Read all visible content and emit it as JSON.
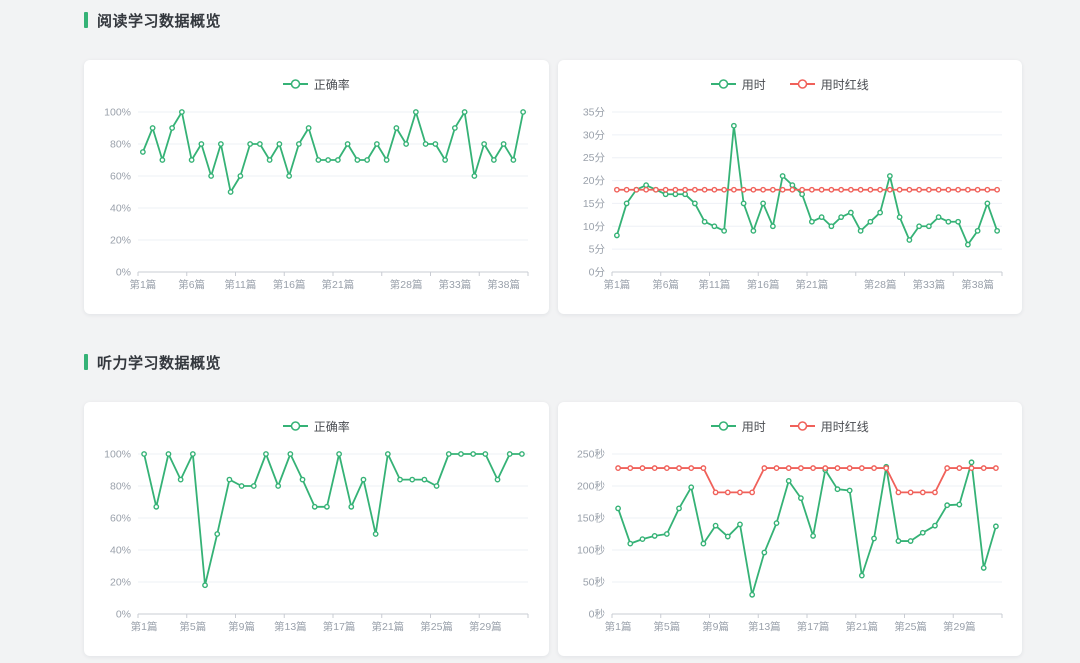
{
  "theme": {
    "green": "#35b276",
    "red": "#f0615a",
    "page_bg": "#f2f3f4",
    "card_bg": "#ffffff",
    "title_color": "#33373d",
    "axis_label_color": "#9aa1ab",
    "axis_line_color": "#c9ccd3",
    "grid_color": "#eef0f6",
    "legend_text_color": "#4a4d52"
  },
  "sections": [
    {
      "title": "阅读学习数据概览",
      "chart_ids": [
        0,
        1
      ]
    },
    {
      "title": "听力学习数据概览",
      "chart_ids": [
        2,
        3
      ]
    }
  ],
  "chart_data": [
    {
      "id": "reading-accuracy",
      "type": "line",
      "legend": [
        "正确率"
      ],
      "legend_position": "top-center",
      "grid": true,
      "ylim": [
        0,
        100
      ],
      "y_step": 20,
      "y_suffix": "%",
      "x_tick_labels": [
        "第1篇",
        "第6篇",
        "第11篇",
        "第16篇",
        "第21篇",
        "第28篇",
        "第33篇",
        "第38篇"
      ],
      "x_tick_indices": [
        0,
        5,
        10,
        15,
        20,
        27,
        32,
        37
      ],
      "series": [
        {
          "name": "正确率",
          "color": "#35b276",
          "values": [
            75,
            90,
            70,
            90,
            100,
            70,
            80,
            60,
            80,
            50,
            60,
            80,
            80,
            70,
            80,
            60,
            80,
            90,
            70,
            70,
            70,
            80,
            70,
            70,
            80,
            70,
            90,
            80,
            100,
            80,
            80,
            70,
            90,
            100,
            60,
            80,
            70,
            80,
            70,
            100
          ]
        }
      ]
    },
    {
      "id": "reading-time",
      "type": "line",
      "legend": [
        "用时",
        "用时红线"
      ],
      "legend_position": "top-center",
      "grid": true,
      "ylim": [
        0,
        35
      ],
      "y_step": 5,
      "y_suffix": "分",
      "x_tick_labels": [
        "第1篇",
        "第6篇",
        "第11篇",
        "第16篇",
        "第21篇",
        "第28篇",
        "第33篇",
        "第38篇"
      ],
      "x_tick_indices": [
        0,
        5,
        10,
        15,
        20,
        27,
        32,
        37
      ],
      "series": [
        {
          "name": "用时",
          "color": "#35b276",
          "values": [
            8,
            15,
            18,
            19,
            18,
            17,
            17,
            17,
            15,
            11,
            10,
            9,
            32,
            15,
            9,
            15,
            10,
            21,
            19,
            17,
            11,
            12,
            10,
            12,
            13,
            9,
            11,
            13,
            21,
            12,
            7,
            10,
            10,
            12,
            11,
            11,
            6,
            9,
            15,
            9
          ]
        },
        {
          "name": "用时红线",
          "color": "#f0615a",
          "values": [
            18,
            18,
            18,
            18,
            18,
            18,
            18,
            18,
            18,
            18,
            18,
            18,
            18,
            18,
            18,
            18,
            18,
            18,
            18,
            18,
            18,
            18,
            18,
            18,
            18,
            18,
            18,
            18,
            18,
            18,
            18,
            18,
            18,
            18,
            18,
            18,
            18,
            18,
            18,
            18
          ]
        }
      ]
    },
    {
      "id": "listening-accuracy",
      "type": "line",
      "legend": [
        "正确率"
      ],
      "legend_position": "top-center",
      "grid": true,
      "ylim": [
        0,
        100
      ],
      "y_step": 20,
      "y_suffix": "%",
      "x_tick_labels": [
        "第1篇",
        "第5篇",
        "第9篇",
        "第13篇",
        "第17篇",
        "第21篇",
        "第25篇",
        "第29篇"
      ],
      "x_tick_indices": [
        0,
        4,
        8,
        12,
        16,
        20,
        24,
        28
      ],
      "series": [
        {
          "name": "正确率",
          "color": "#35b276",
          "values": [
            100,
            67,
            100,
            84,
            100,
            18,
            50,
            84,
            80,
            80,
            100,
            80,
            100,
            84,
            67,
            67,
            100,
            67,
            84,
            50,
            100,
            84,
            84,
            84,
            80,
            100,
            100,
            100,
            100,
            84,
            100,
            100
          ]
        }
      ]
    },
    {
      "id": "listening-time",
      "type": "line",
      "legend": [
        "用时",
        "用时红线"
      ],
      "legend_position": "top-center",
      "grid": true,
      "ylim": [
        0,
        250
      ],
      "y_step": 50,
      "y_suffix": "秒",
      "x_tick_labels": [
        "第1篇",
        "第5篇",
        "第9篇",
        "第13篇",
        "第17篇",
        "第21篇",
        "第25篇",
        "第29篇"
      ],
      "x_tick_indices": [
        0,
        4,
        8,
        12,
        16,
        20,
        24,
        28
      ],
      "series": [
        {
          "name": "用时",
          "color": "#35b276",
          "values": [
            165,
            110,
            117,
            122,
            125,
            165,
            198,
            110,
            138,
            121,
            140,
            30,
            96,
            142,
            208,
            181,
            122,
            225,
            195,
            193,
            60,
            118,
            230,
            114,
            114,
            127,
            138,
            170,
            171,
            237,
            72,
            137
          ]
        },
        {
          "name": "用时红线",
          "color": "#f0615a",
          "values": [
            228,
            228,
            228,
            228,
            228,
            228,
            228,
            228,
            190,
            190,
            190,
            190,
            228,
            228,
            228,
            228,
            228,
            228,
            228,
            228,
            228,
            228,
            228,
            190,
            190,
            190,
            190,
            228,
            228,
            228,
            228,
            228
          ]
        }
      ]
    }
  ]
}
